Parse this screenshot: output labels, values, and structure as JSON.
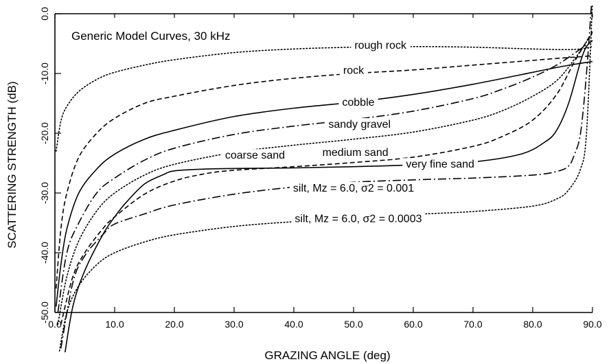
{
  "chart_data": {
    "type": "line",
    "title": "Generic Model Curves, 30 kHz",
    "xlabel": "GRAZING ANGLE  (deg)",
    "ylabel": "SCATTERING STRENGTH (dB)",
    "xlim": [
      0,
      90
    ],
    "ylim": [
      -50,
      0
    ],
    "xticks": [
      0,
      10,
      20,
      30,
      40,
      50,
      60,
      70,
      80,
      90
    ],
    "xtick_labels": [
      "0.0",
      "10.0",
      "20.0",
      "30.0",
      "40.0",
      "50.0",
      "60.0",
      "70.0",
      "80.0",
      "90.0"
    ],
    "yticks": [
      0,
      -10,
      -20,
      -30,
      -40,
      -50
    ],
    "ytick_labels": [
      "0.0",
      "-10.0",
      "-20.0",
      "-30.0",
      "-40.0",
      "-50.0"
    ],
    "grid": false,
    "legend": "inline labels",
    "series": [
      {
        "name": "rough rock",
        "style": "dotted",
        "x": [
          0.2,
          1,
          2,
          4,
          7,
          10,
          15,
          20,
          30,
          40,
          50,
          60,
          70,
          80,
          85,
          88,
          90
        ],
        "y": [
          -23,
          -18,
          -15.5,
          -13,
          -11,
          -9.8,
          -8.6,
          -7.7,
          -6.5,
          -5.9,
          -5.6,
          -5.5,
          -5.6,
          -5.9,
          -6,
          -5.9,
          -5.5
        ],
        "label": "rough rock",
        "label_at": [
          54.5,
          -5.3
        ]
      },
      {
        "name": "rock",
        "style": "dashed",
        "x": [
          0.2,
          1,
          2,
          4,
          7,
          10,
          15,
          20,
          30,
          40,
          50,
          60,
          70,
          80,
          85,
          88,
          90
        ],
        "y": [
          -46,
          -36,
          -30,
          -24,
          -20,
          -17.5,
          -15,
          -13.8,
          -12,
          -10.8,
          -10,
          -9.4,
          -8.6,
          -7.8,
          -7.4,
          -7.2,
          -7
        ],
        "label": "rock",
        "label_at": [
          50,
          -9.5
        ]
      },
      {
        "name": "cobble",
        "style": "solid",
        "x": [
          0.2,
          1,
          2,
          4,
          7,
          10,
          15,
          20,
          30,
          40,
          50,
          60,
          70,
          80,
          85,
          88,
          90
        ],
        "y": [
          -49,
          -42,
          -36,
          -30,
          -26,
          -23.5,
          -21,
          -19.5,
          -17.2,
          -15.8,
          -14.8,
          -13.5,
          -11.8,
          -9.8,
          -8.8,
          -8.3,
          -8
        ],
        "label": "cobble",
        "label_at": [
          50.8,
          -14.8
        ]
      },
      {
        "name": "sandy gravel",
        "style": "dashdot",
        "x": [
          0.5,
          2,
          4,
          7,
          10,
          15,
          20,
          30,
          40,
          50,
          60,
          70,
          75,
          80,
          84,
          87,
          90
        ],
        "y": [
          -50,
          -40,
          -35,
          -30,
          -27.5,
          -24.5,
          -22.5,
          -20.2,
          -18.8,
          -17.7,
          -16.3,
          -14.2,
          -12.6,
          -10.6,
          -8.6,
          -6.6,
          -4.5
        ],
        "label": "sandy gravel",
        "label_at": [
          51,
          -18.5
        ]
      },
      {
        "name": "coarse sand",
        "style": "dotted",
        "x": [
          0.5,
          2,
          4,
          7,
          10,
          15,
          20,
          30,
          40,
          50,
          60,
          70,
          75,
          80,
          84,
          87,
          90
        ],
        "y": [
          -52,
          -44,
          -38,
          -33,
          -30,
          -27,
          -25.2,
          -23.2,
          -22,
          -21,
          -19.8,
          -17.8,
          -16.2,
          -13.8,
          -11.2,
          -7.6,
          -3.2
        ],
        "label": "coarse sand",
        "label_at": [
          33.5,
          -23.7
        ]
      },
      {
        "name": "medium sand",
        "style": "dashed",
        "x": [
          1,
          3,
          5,
          8,
          10,
          15,
          20,
          25,
          30,
          40,
          50,
          60,
          70,
          75,
          80,
          84,
          87,
          90
        ],
        "y": [
          -52,
          -44,
          -40,
          -36,
          -34,
          -30.2,
          -28,
          -26.8,
          -26.2,
          -25.6,
          -24.9,
          -24,
          -22.2,
          -20.5,
          -17.8,
          -13.5,
          -8,
          -3
        ],
        "label": "medium sand",
        "label_at": [
          50.3,
          -23.2
        ]
      },
      {
        "name": "very fine sand",
        "style": "solid",
        "x": [
          1.5,
          3,
          5,
          8,
          10,
          12,
          15,
          18,
          20,
          25,
          30,
          40,
          50,
          60,
          70,
          78,
          82,
          84,
          86,
          88,
          89,
          90
        ],
        "y": [
          -58,
          -49,
          -43,
          -37,
          -34,
          -31.5,
          -28.5,
          -27,
          -26.3,
          -26,
          -25.9,
          -25.8,
          -25.6,
          -25.3,
          -24.8,
          -23.5,
          -21.5,
          -19.5,
          -15,
          -8,
          -5.5,
          -4.5
        ],
        "label": "very fine sand",
        "label_at": [
          64.5,
          -25.2
        ]
      },
      {
        "name": "silt, Mz = 6.0, σ2 = 0.001",
        "style": "dashdot",
        "x": [
          1,
          3,
          5,
          8,
          10,
          15,
          20,
          30,
          40,
          50,
          60,
          70,
          80,
          84,
          86,
          87,
          88,
          89,
          90
        ],
        "y": [
          -56,
          -45,
          -40.5,
          -37,
          -35.2,
          -33.5,
          -32,
          -30.2,
          -29,
          -28.2,
          -27.8,
          -27.5,
          -27,
          -26.4,
          -25.5,
          -23.5,
          -20,
          -10,
          4
        ],
        "label": "silt, Mz = 6.0, σ2 = 0.001",
        "label_at": [
          50,
          -29.2
        ]
      },
      {
        "name": "silt, Mz = 6.0, σ2 = 0.0003",
        "style": "dotted",
        "x": [
          0.5,
          2,
          4,
          7,
          10,
          15,
          20,
          30,
          40,
          50,
          60,
          70,
          80,
          84,
          86,
          88,
          89,
          90
        ],
        "y": [
          -58,
          -50,
          -45.5,
          -42,
          -40,
          -38.2,
          -37,
          -35.6,
          -34.8,
          -34.2,
          -33.6,
          -33.1,
          -32.2,
          -31,
          -29.5,
          -26,
          -20,
          2
        ],
        "label": "silt, Mz = 6.0, σ2 = 0.0003",
        "label_at": [
          50.8,
          -34.3
        ]
      }
    ]
  }
}
